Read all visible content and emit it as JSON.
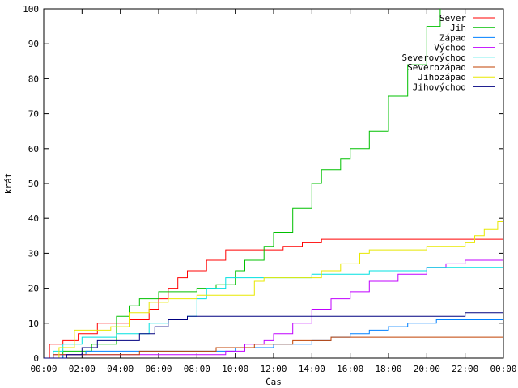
{
  "chart_data": {
    "type": "line",
    "title": "",
    "xlabel": "Čas",
    "ylabel": "krát",
    "xlim": [
      0,
      24
    ],
    "ylim": [
      0,
      100
    ],
    "grid": false,
    "legend_position": "top-right",
    "x_tick_labels": [
      "00:00",
      "02:00",
      "04:00",
      "06:00",
      "08:00",
      "10:00",
      "12:00",
      "14:00",
      "16:00",
      "18:00",
      "20:00",
      "22:00",
      "00:00"
    ],
    "y_ticks": [
      0,
      10,
      20,
      30,
      40,
      50,
      60,
      70,
      80,
      90,
      100
    ],
    "series": [
      {
        "name": "Sever",
        "color": "#ff0000",
        "points": [
          [
            0,
            0
          ],
          [
            0.3,
            4
          ],
          [
            1,
            5
          ],
          [
            1.8,
            7
          ],
          [
            2.8,
            10
          ],
          [
            4.5,
            11
          ],
          [
            5.5,
            14
          ],
          [
            6,
            17
          ],
          [
            6.5,
            20
          ],
          [
            7,
            23
          ],
          [
            7.5,
            25
          ],
          [
            8.5,
            28
          ],
          [
            9.5,
            31
          ],
          [
            12.5,
            32
          ],
          [
            13.5,
            33
          ],
          [
            14.5,
            34
          ],
          [
            24,
            34
          ]
        ]
      },
      {
        "name": "Jih",
        "color": "#00c000",
        "points": [
          [
            0,
            0
          ],
          [
            1,
            2
          ],
          [
            2.5,
            4
          ],
          [
            3.8,
            12
          ],
          [
            4.5,
            15
          ],
          [
            5,
            17
          ],
          [
            6,
            19
          ],
          [
            8,
            20
          ],
          [
            9,
            21
          ],
          [
            10,
            25
          ],
          [
            10.5,
            28
          ],
          [
            11.5,
            32
          ],
          [
            12,
            36
          ],
          [
            13,
            43
          ],
          [
            14,
            50
          ],
          [
            14.5,
            54
          ],
          [
            15.5,
            57
          ],
          [
            16,
            60
          ],
          [
            17,
            65
          ],
          [
            18,
            75
          ],
          [
            19,
            84
          ],
          [
            20,
            95
          ],
          [
            20.7,
            100
          ]
        ]
      },
      {
        "name": "Západ",
        "color": "#0080ff",
        "points": [
          [
            0,
            0
          ],
          [
            1,
            1
          ],
          [
            2.2,
            2
          ],
          [
            10,
            3
          ],
          [
            12,
            4
          ],
          [
            14,
            5
          ],
          [
            15,
            6
          ],
          [
            16,
            7
          ],
          [
            17,
            8
          ],
          [
            18,
            9
          ],
          [
            19,
            10
          ],
          [
            20.5,
            11
          ],
          [
            24,
            11
          ]
        ]
      },
      {
        "name": "Východ",
        "color": "#c000ff",
        "points": [
          [
            0,
            0
          ],
          [
            0.5,
            1
          ],
          [
            9.5,
            2
          ],
          [
            10.5,
            4
          ],
          [
            11.5,
            5
          ],
          [
            12,
            7
          ],
          [
            13,
            10
          ],
          [
            14,
            14
          ],
          [
            15,
            17
          ],
          [
            16,
            19
          ],
          [
            17,
            22
          ],
          [
            18.5,
            24
          ],
          [
            20,
            26
          ],
          [
            21,
            27
          ],
          [
            22,
            28
          ],
          [
            24,
            28
          ]
        ]
      },
      {
        "name": "Severovýchod",
        "color": "#00e0e0",
        "points": [
          [
            0,
            0
          ],
          [
            0.5,
            2
          ],
          [
            1,
            4
          ],
          [
            2,
            6
          ],
          [
            3,
            6
          ],
          [
            3.8,
            7
          ],
          [
            5.5,
            10
          ],
          [
            6.5,
            11
          ],
          [
            7.5,
            12
          ],
          [
            8,
            17
          ],
          [
            8.5,
            20
          ],
          [
            9.5,
            23
          ],
          [
            10.5,
            23
          ],
          [
            14,
            24
          ],
          [
            17,
            25
          ],
          [
            20,
            26
          ],
          [
            24,
            26
          ]
        ]
      },
      {
        "name": "Severozápad",
        "color": "#c04000",
        "points": [
          [
            0,
            0
          ],
          [
            0.5,
            1
          ],
          [
            5,
            2
          ],
          [
            8,
            2
          ],
          [
            9,
            3
          ],
          [
            11,
            4
          ],
          [
            13,
            5
          ],
          [
            15,
            6
          ],
          [
            24,
            6
          ]
        ]
      },
      {
        "name": "Jihozápad",
        "color": "#e8e800",
        "points": [
          [
            0,
            0
          ],
          [
            0.8,
            3
          ],
          [
            1.6,
            8
          ],
          [
            3.5,
            9
          ],
          [
            4.5,
            13
          ],
          [
            5.5,
            16
          ],
          [
            6.5,
            17
          ],
          [
            7.5,
            17
          ],
          [
            8,
            18
          ],
          [
            10.5,
            18
          ],
          [
            11,
            22
          ],
          [
            11.5,
            23
          ],
          [
            14.5,
            25
          ],
          [
            15.5,
            27
          ],
          [
            16.5,
            30
          ],
          [
            17,
            31
          ],
          [
            19.5,
            31
          ],
          [
            20,
            32
          ],
          [
            22,
            33
          ],
          [
            22.5,
            35
          ],
          [
            23,
            37
          ],
          [
            23.7,
            39
          ],
          [
            24,
            39
          ]
        ]
      },
      {
        "name": "Jihovýchod",
        "color": "#000080",
        "points": [
          [
            0,
            0
          ],
          [
            1.2,
            1
          ],
          [
            2,
            3
          ],
          [
            2.8,
            5
          ],
          [
            4,
            5
          ],
          [
            5,
            7
          ],
          [
            5.8,
            9
          ],
          [
            6.5,
            11
          ],
          [
            7.5,
            12
          ],
          [
            20,
            12
          ],
          [
            22,
            13
          ],
          [
            24,
            13
          ]
        ]
      }
    ]
  }
}
